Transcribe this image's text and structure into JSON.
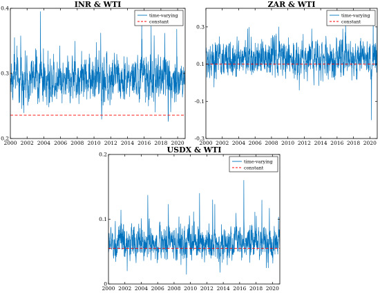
{
  "chart_data": [
    {
      "type": "line",
      "title": "INR & WTI",
      "xlim": [
        2000,
        2020.9
      ],
      "ylim": [
        0.2,
        0.4
      ],
      "xticks": [
        "2000",
        "2002",
        "2004",
        "2006",
        "2008",
        "2010",
        "2012",
        "2014",
        "2016",
        "2018",
        "2020"
      ],
      "yticks": [
        "0.2",
        "0.3",
        "0.4"
      ],
      "legend_position": "top-right",
      "series": [
        {
          "name": "time-varying",
          "style": "solid",
          "color": "#0072BD",
          "mean": 0.292,
          "spread": 0.016,
          "spikes": [
            [
              2003.6,
              0.395
            ],
            [
              2015.7,
              0.38
            ],
            [
              2019.9,
              0.368
            ],
            [
              2017.2,
              0.358
            ],
            [
              2000.5,
              0.355
            ],
            [
              2010.8,
              0.362
            ],
            [
              2004.7,
              0.255
            ],
            [
              2016.5,
              0.25
            ]
          ]
        },
        {
          "name": "constant",
          "style": "dashed",
          "color": "#FF0000",
          "value": 0.236
        }
      ]
    },
    {
      "type": "line",
      "title": "ZAR & WTI",
      "xlim": [
        2000,
        2020.9
      ],
      "ylim": [
        -0.3,
        0.4
      ],
      "xticks": [
        "2000",
        "2002",
        "2004",
        "2006",
        "2008",
        "2010",
        "2012",
        "2014",
        "2016",
        "2018",
        "2020"
      ],
      "yticks": [
        "-0.3",
        "-0.1",
        "0.1",
        "0.3"
      ],
      "legend_position": "top-right",
      "series": [
        {
          "name": "time-varying",
          "style": "solid",
          "color": "#0072BD",
          "mean": 0.13,
          "spread": 0.045,
          "spikes": [
            [
              2020.2,
              -0.2
            ],
            [
              2020.4,
              0.38
            ],
            [
              2011.4,
              -0.04
            ],
            [
              2008.9,
              0.3
            ],
            [
              2005.1,
              0.29
            ],
            [
              2017.0,
              0.27
            ]
          ]
        },
        {
          "name": "constant",
          "style": "dashed",
          "color": "#FF0000",
          "value": 0.1
        }
      ]
    },
    {
      "type": "line",
      "title": "USDX & WTI",
      "xlim": [
        2000,
        2020.9
      ],
      "ylim": [
        0,
        0.2
      ],
      "xticks": [
        "2000",
        "2002",
        "2004",
        "2006",
        "2008",
        "2010",
        "2012",
        "2014",
        "2016",
        "2018",
        "2020"
      ],
      "yticks": [
        "0",
        "0.1",
        "0.2"
      ],
      "legend_position": "top-right",
      "series": [
        {
          "name": "time-varying",
          "style": "solid",
          "color": "#0072BD",
          "mean": 0.063,
          "spread": 0.012,
          "spikes": [
            [
              2016.5,
              0.16
            ],
            [
              2004.8,
              0.137
            ],
            [
              2011.1,
              0.14
            ],
            [
              2009.5,
              0.015
            ],
            [
              2013.6,
              0.018
            ],
            [
              2012.7,
              0.13
            ],
            [
              2007.3,
              0.123
            ],
            [
              2019.5,
              0.025
            ]
          ]
        },
        {
          "name": "constant",
          "style": "dashed",
          "color": "#FF0000",
          "value": 0.055
        }
      ]
    }
  ]
}
